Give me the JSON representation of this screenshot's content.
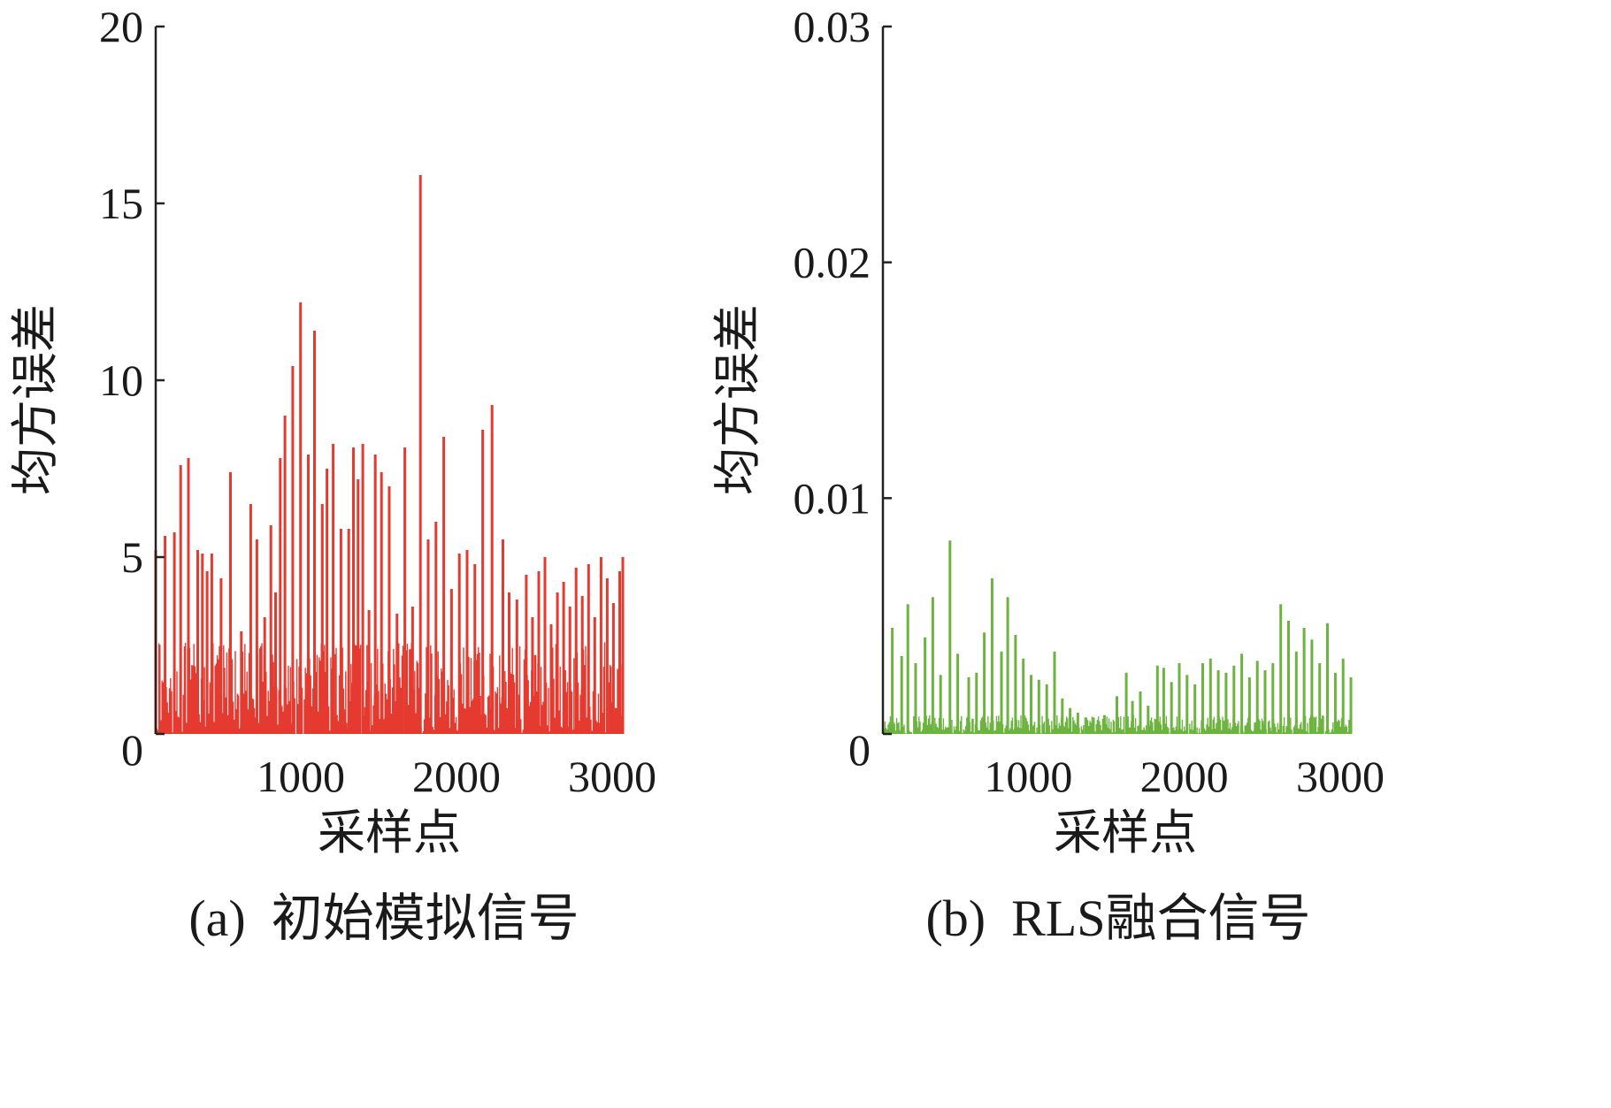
{
  "figure": {
    "panels": [
      {
        "caption": "(a)  初始模拟信号",
        "xlabel": "采样点",
        "ylabel": "均方误差",
        "color": "#e53a2f"
      },
      {
        "caption": "(b)  RLS融合信号",
        "xlabel": "采样点",
        "ylabel": "均方误差",
        "color": "#6db33f"
      }
    ]
  },
  "chart_data": [
    {
      "type": "line",
      "title": "",
      "caption": "(a)  初始模拟信号",
      "xlabel": "采样点",
      "ylabel": "均方误差",
      "xlim": [
        0,
        3000
      ],
      "ylim": [
        0,
        20
      ],
      "xticks": [
        1000,
        2000,
        3000
      ],
      "xtick_labels": [
        "1000",
        "2000",
        "3000"
      ],
      "yticks": [
        0,
        5,
        10,
        15,
        20
      ],
      "ytick_labels": [
        "0",
        "5",
        "10",
        "15",
        "20"
      ],
      "grid": false,
      "color": "#e53a2f",
      "series": [
        {
          "x": [
            0,
            60,
            120,
            160,
            210,
            270,
            300,
            330,
            360,
            420,
            480,
            550,
            610,
            650,
            700,
            740,
            770,
            800,
            830,
            880,
            930,
            980,
            1020,
            1070,
            1100,
            1140,
            1190,
            1240,
            1270,
            1300,
            1330,
            1370,
            1410,
            1450,
            1500,
            1550,
            1600,
            1650,
            1700,
            1750,
            1800,
            1850,
            1900,
            1950,
            2000,
            2050,
            2100,
            2160,
            2230,
            2270,
            2320,
            2380,
            2420,
            2460,
            2500,
            2540,
            2580,
            2620,
            2660,
            2700,
            2740,
            2780,
            2820,
            2860,
            2900,
            2940,
            2980,
            3000
          ],
          "y": [
            5.2,
            5.6,
            5.7,
            7.6,
            7.8,
            5.2,
            5.1,
            4.6,
            5.1,
            4.4,
            7.4,
            2.9,
            6.5,
            5.5,
            3.3,
            5.9,
            4.0,
            7.8,
            9.0,
            10.4,
            12.2,
            7.9,
            11.4,
            6.5,
            7.5,
            8.2,
            5.8,
            5.8,
            8.1,
            7.2,
            8.2,
            3.5,
            7.9,
            7.4,
            7.0,
            3.4,
            8.1,
            3.6,
            15.8,
            5.5,
            6.0,
            8.4,
            4.1,
            5.1,
            5.2,
            4.8,
            8.6,
            9.3,
            5.5,
            4.0,
            3.8,
            4.5,
            3.3,
            4.6,
            5.0,
            3.1,
            4.0,
            4.3,
            3.6,
            4.7,
            3.9,
            4.8,
            3.3,
            5.0,
            4.4,
            3.7,
            4.6,
            5.0
          ],
          "noise_floor": [
            0,
            2.6
          ]
        }
      ]
    },
    {
      "type": "line",
      "title": "",
      "caption": "(b)  RLS融合信号",
      "xlabel": "采样点",
      "ylabel": "均方误差",
      "xlim": [
        0,
        3000
      ],
      "ylim": [
        0,
        0.03
      ],
      "xticks": [
        1000,
        2000,
        3000
      ],
      "xtick_labels": [
        "1000",
        "2000",
        "3000"
      ],
      "yticks": [
        0,
        0.01,
        0.02,
        0.03
      ],
      "ytick_labels": [
        "0",
        "0.01",
        "0.02",
        "0.03"
      ],
      "grid": false,
      "color": "#6db33f",
      "series": [
        {
          "x": [
            60,
            120,
            160,
            210,
            270,
            320,
            370,
            430,
            480,
            550,
            600,
            650,
            700,
            760,
            800,
            850,
            900,
            950,
            1000,
            1050,
            1100,
            1150,
            1200,
            1250,
            1300,
            1350,
            1420,
            1500,
            1560,
            1600,
            1650,
            1700,
            1760,
            1800,
            1850,
            1900,
            1950,
            2000,
            2050,
            2100,
            2150,
            2200,
            2250,
            2300,
            2350,
            2400,
            2450,
            2500,
            2550,
            2600,
            2650,
            2700,
            2750,
            2800,
            2850,
            2900,
            2950,
            3000
          ],
          "y": [
            0.0045,
            0.0033,
            0.0055,
            0.003,
            0.0041,
            0.0058,
            0.0025,
            0.0082,
            0.0034,
            0.0024,
            0.0026,
            0.0043,
            0.0066,
            0.0035,
            0.0058,
            0.0042,
            0.0032,
            0.0025,
            0.0023,
            0.0021,
            0.0035,
            0.0015,
            0.0011,
            0.0009,
            0.0007,
            0.0007,
            0.0008,
            0.0016,
            0.0026,
            0.0014,
            0.0018,
            0.0012,
            0.0029,
            0.0028,
            0.0022,
            0.003,
            0.0025,
            0.0021,
            0.003,
            0.0032,
            0.0027,
            0.0026,
            0.0029,
            0.0034,
            0.0024,
            0.0031,
            0.0027,
            0.003,
            0.0055,
            0.0048,
            0.0035,
            0.0045,
            0.004,
            0.003,
            0.0047,
            0.0026,
            0.0032,
            0.0024
          ],
          "noise_floor": [
            0,
            0.0008
          ]
        }
      ]
    }
  ]
}
